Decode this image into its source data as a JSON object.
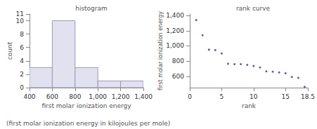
{
  "chart_data": [
    {
      "type": "histogram",
      "title": "histogram",
      "x_label": "first molar ionization energy",
      "y_label": "count",
      "bins": [
        400,
        600,
        800,
        1000,
        1200,
        1400
      ],
      "counts": [
        3,
        10,
        3,
        1,
        1
      ],
      "color": "#e1e1f0",
      "xlim": [
        400,
        1400
      ],
      "xticks": [
        400,
        600,
        800,
        1000,
        1200,
        1400
      ],
      "ylim": [
        0,
        11
      ],
      "yticks": [
        0,
        2,
        4,
        6,
        8,
        10
      ],
      "grid": false
    },
    {
      "type": "scatter",
      "title": "rank curve",
      "x_label": "rank",
      "y_label": "first molar ionization energy",
      "x": [
        1,
        2,
        3,
        4,
        5,
        6,
        7,
        8,
        9,
        10,
        11,
        12,
        13,
        14,
        15,
        16,
        17,
        18
      ],
      "values": [
        1340,
        1140,
        950,
        945,
        900,
        765,
        760,
        760,
        750,
        735,
        715,
        665,
        660,
        650,
        640,
        590,
        580,
        460
      ],
      "color": "#3a3a8c",
      "xlim": [
        0,
        18.5
      ],
      "xticks": [
        0,
        5,
        10,
        15
      ],
      "ylim": [
        450,
        1420
      ],
      "yticks": [
        600,
        800,
        1000,
        1200,
        1400
      ],
      "grid": false
    }
  ],
  "caption": "(first molar ionization energy in kilojoules per mole)"
}
